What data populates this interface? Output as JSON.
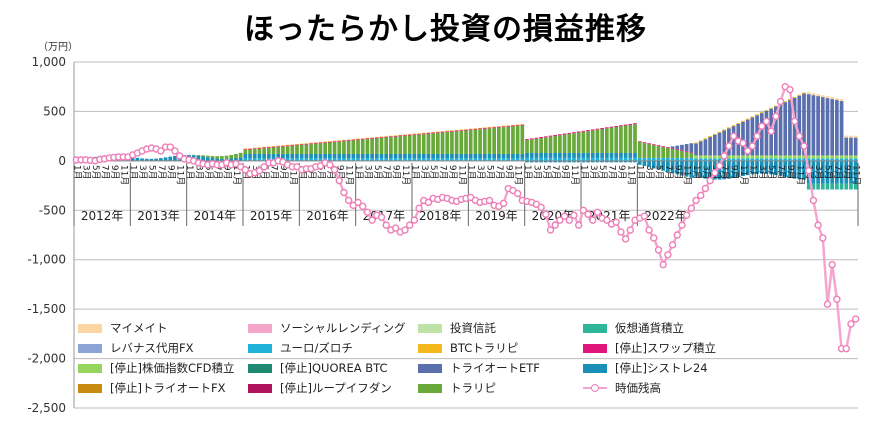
{
  "title": "ほったらかし投資の損益推移",
  "unit": "（万円）",
  "chart_data": {
    "type": "bar",
    "subtype": "stacked-bar-with-line",
    "y_unit": "万円",
    "ylim": [
      -2500,
      1000
    ],
    "yticks": [
      1000,
      500,
      0,
      -500,
      -1000,
      -1500,
      -2000,
      -2500
    ],
    "ytick_labels": [
      "1,000",
      "500",
      "0",
      "-500",
      "-1,000",
      "-1,500",
      "-2,000",
      "-2,500"
    ],
    "grid": true,
    "legend_position": "bottom",
    "x_start": "2012-01",
    "x_end": "2022-12",
    "years": [
      "2012年",
      "2013年",
      "2014年",
      "2015年",
      "2016年",
      "2017年",
      "2018年",
      "2019年",
      "2020年",
      "2021年",
      "2022年"
    ],
    "month_labels": [
      "1月",
      "3月",
      "5月",
      "7月",
      "9月",
      "11月"
    ],
    "legend": [
      {
        "name": "マイメイト",
        "color": "#fdd5a2",
        "kind": "bar"
      },
      {
        "name": "ソーシャルレンディング",
        "color": "#f4a6c8",
        "kind": "bar"
      },
      {
        "name": "投資信託",
        "color": "#bfe3a6",
        "kind": "bar"
      },
      {
        "name": "仮想通貨積立",
        "color": "#2fb59a",
        "kind": "bar"
      },
      {
        "name": "レバナス代用FX",
        "color": "#8aa4d6",
        "kind": "bar"
      },
      {
        "name": "ユーロ/ズロチ",
        "color": "#20b2d8",
        "kind": "bar"
      },
      {
        "name": "BTCトラリピ",
        "color": "#f5b81c",
        "kind": "bar"
      },
      {
        "name": "[停止]スワップ積立",
        "color": "#e0167c",
        "kind": "bar"
      },
      {
        "name": "[停止]株価指数CFD積立",
        "color": "#96d65e",
        "kind": "bar"
      },
      {
        "name": "[停止]QUOREA BTC",
        "color": "#1f8a72",
        "kind": "bar"
      },
      {
        "name": "トライオートETF",
        "color": "#5a6fae",
        "kind": "bar"
      },
      {
        "name": "[停止]シストレ24",
        "color": "#1a8fb8",
        "kind": "bar"
      },
      {
        "name": "[停止]トライオートFX",
        "color": "#c98a10",
        "kind": "bar"
      },
      {
        "name": "[停止]ループイフダン",
        "color": "#b0135e",
        "kind": "bar"
      },
      {
        "name": "トラリピ",
        "color": "#69a93b",
        "kind": "bar"
      },
      {
        "name": "時価残高",
        "color": "#f4a6cf",
        "kind": "line"
      }
    ],
    "series": [
      {
        "name": "時価残高",
        "kind": "line",
        "values": [
          10,
          10,
          10,
          5,
          0,
          15,
          20,
          30,
          35,
          40,
          40,
          40,
          60,
          80,
          100,
          120,
          130,
          120,
          100,
          140,
          140,
          100,
          50,
          20,
          10,
          0,
          -20,
          -30,
          -40,
          -30,
          -40,
          -40,
          -20,
          -40,
          -30,
          -60,
          -90,
          -130,
          -120,
          -100,
          -60,
          -20,
          -20,
          0,
          -10,
          -40,
          -60,
          -60,
          -90,
          -80,
          -80,
          -60,
          -50,
          -20,
          -40,
          -90,
          -200,
          -320,
          -400,
          -450,
          -420,
          -460,
          -520,
          -600,
          -550,
          -570,
          -650,
          -700,
          -680,
          -720,
          -700,
          -650,
          -600,
          -480,
          -400,
          -420,
          -380,
          -390,
          -370,
          -380,
          -400,
          -410,
          -390,
          -380,
          -370,
          -400,
          -420,
          -410,
          -400,
          -450,
          -460,
          -430,
          -280,
          -300,
          -330,
          -400,
          -410,
          -420,
          -440,
          -470,
          -540,
          -700,
          -650,
          -600,
          -560,
          -600,
          -550,
          -650,
          -500,
          -540,
          -600,
          -520,
          -580,
          -600,
          -640,
          -620,
          -720,
          -790,
          -700,
          -600,
          -580,
          -560,
          -700,
          -780,
          -900,
          -1050,
          -950,
          -850,
          -750,
          -650,
          -550,
          -480,
          -400,
          -350,
          -280,
          -200,
          -120,
          -50,
          50,
          150,
          250,
          200,
          180,
          100,
          150,
          250,
          350,
          400,
          300,
          450,
          600,
          750,
          720,
          400,
          250,
          150,
          -100,
          -400,
          -650,
          -780,
          -1450,
          -1050,
          -1400,
          -1900,
          -1900,
          -1650,
          -1600
        ]
      }
    ]
  }
}
